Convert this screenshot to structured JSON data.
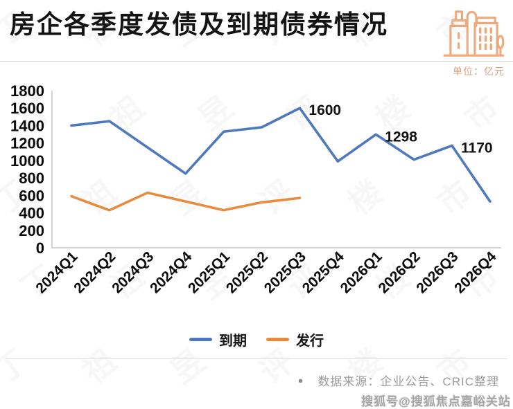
{
  "header": {
    "unit_label": "单位：亿元"
  },
  "chart_data": {
    "type": "line",
    "title": "房企各季度发债及到期债券情况",
    "unit": "亿元",
    "xlabel": "",
    "ylabel": "",
    "grid": false,
    "legend_position": "bottom",
    "ylim": [
      0,
      1800
    ],
    "yticks": [
      0,
      200,
      400,
      600,
      800,
      1000,
      1200,
      1400,
      1600,
      1800
    ],
    "categories": [
      "2024Q1",
      "2024Q2",
      "2024Q3",
      "2024Q4",
      "2025Q1",
      "2025Q2",
      "2025Q3",
      "2025Q4",
      "2026Q1",
      "2026Q2",
      "2026Q3",
      "2026Q4"
    ],
    "series": [
      {
        "id": "maturity",
        "name": "到期",
        "color": "#4E79BC",
        "values": [
          1400,
          1450,
          1150,
          850,
          1330,
          1380,
          1600,
          990,
          1298,
          1010,
          1170,
          530
        ],
        "data_labels": [
          null,
          null,
          null,
          null,
          null,
          null,
          "1600",
          null,
          "1298",
          null,
          "1170",
          null
        ]
      },
      {
        "id": "issuance",
        "name": "发行",
        "color": "#E98B3F",
        "values": [
          590,
          430,
          630,
          530,
          430,
          520,
          570
        ],
        "data_labels": [
          null,
          null,
          null,
          null,
          null,
          null,
          null
        ]
      }
    ]
  },
  "footer": {
    "bullet": "●",
    "source": "数据来源：企业公告、CRIC整理"
  },
  "watermarks": {
    "bottom_right": "搜狐号@搜狐焦点嘉峪关站",
    "tile_chars": [
      "丁",
      "祖",
      "昱",
      "评",
      "楼",
      "市"
    ]
  }
}
